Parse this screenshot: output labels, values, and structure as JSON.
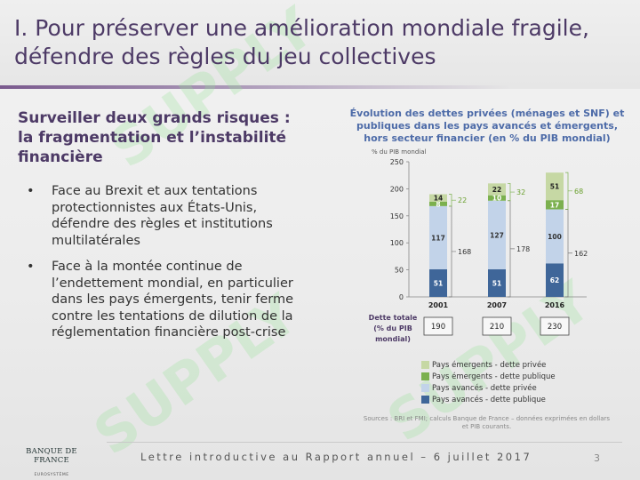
{
  "slide": {
    "title_line1": "I. Pour préserver une amélioration mondiale fragile,",
    "title_line2": "défendre des règles du jeu collectives",
    "left_heading_line1": "Surveiller deux grands risques :",
    "left_heading_line2": "la fragmentation et l’instabilité",
    "left_heading_line3": "financière",
    "bullet_marker": "•",
    "bullets": [
      "Face au Brexit et aux tentations protectionnistes aux États-Unis, défendre des règles et institutions multilatérales",
      "Face à la montée continue de l’endettement mondial, en particulier dans les pays émergents, tenir ferme contre les tentations de dilution de la réglementation financière post-crise"
    ],
    "watermark_text": "SUPPLY",
    "footer_text": "Lettre introductive au Rapport annuel – 6 juillet 2017",
    "page_number": "3",
    "logo": {
      "name": "BANQUE DE FRANCE",
      "subtitle": "EUROSYSTÈME"
    }
  },
  "chart_data": {
    "type": "bar",
    "stacked": true,
    "title": "Évolution des dettes privées (ménages et SNF) et publiques dans les pays avancés et émergents, hors secteur financier (en % du PIB mondial)",
    "yaxis_fragment": "% du PIB mondial",
    "categories": [
      "2001",
      "2007",
      "2016"
    ],
    "ylim": [
      0,
      250
    ],
    "yticks": [
      0,
      50,
      100,
      150,
      200,
      250
    ],
    "series": [
      {
        "name": "Pays avancés - dette publique",
        "color": "#3f6699",
        "values": [
          51,
          51,
          62
        ]
      },
      {
        "name": "Pays avancés - dette privée",
        "color": "#c2d3e9",
        "values": [
          117,
          127,
          100
        ]
      },
      {
        "name": "Pays émergents - dette publique",
        "color": "#7bb04e",
        "values": [
          8,
          10,
          17
        ]
      },
      {
        "name": "Pays émergents - dette privée",
        "color": "#c6d8a4",
        "values": [
          14,
          22,
          51
        ]
      }
    ],
    "advanced_totals": [
      168,
      178,
      162
    ],
    "emerging_totals": [
      22,
      32,
      68
    ],
    "total_label": "Dette totale (% du PIB mondial)",
    "totals": [
      190,
      210,
      230
    ],
    "sources": "Sources : BRI et FMI; calculs Banque de France – données exprimées en dollars et PIB courants.",
    "colors": {
      "advanced_total_text": "#333333",
      "emerging_total_text": "#6aa02e"
    }
  }
}
